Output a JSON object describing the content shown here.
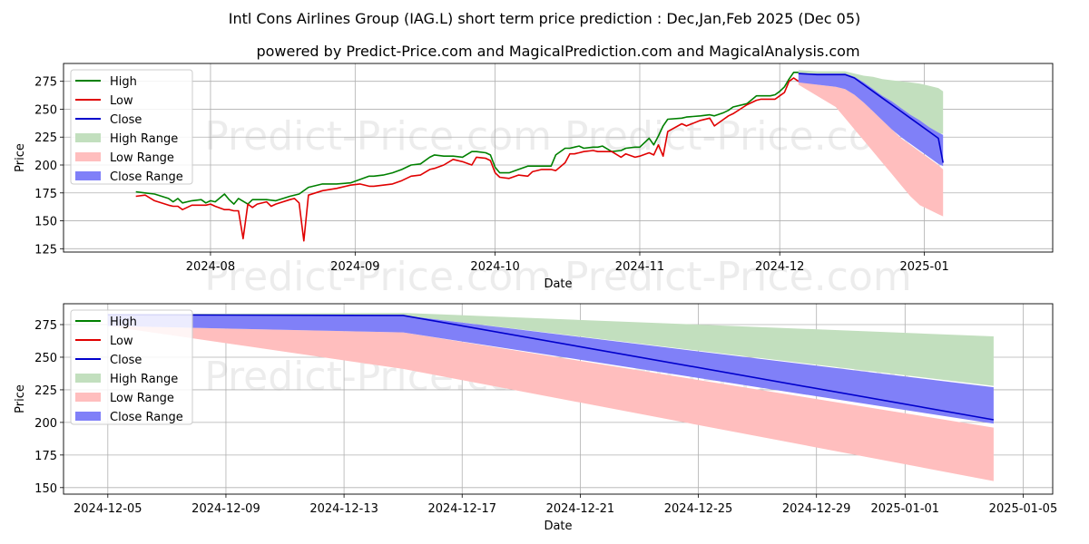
{
  "title": "Intl Cons Airlines Group (IAG.L) short term price prediction : Dec,Jan,Feb 2025 (Dec 05)",
  "subtitle": "powered by Predict-Price.com and MagicalPrediction.com and MagicalAnalysis.com",
  "watermark": "Predict-Price.com",
  "colors": {
    "high": "#008000",
    "low": "#e00000",
    "close": "#0000cc",
    "high_range": "#c2dfbe",
    "low_range": "#ffbebe",
    "close_range": "#8080f8"
  },
  "chart_data": [
    {
      "type": "line",
      "title": "Intl Cons Airlines Group (IAG.L) short term price prediction : Dec,Jan,Feb 2025 (Dec 05)",
      "xlabel": "Date",
      "ylabel": "Price",
      "xlim": [
        -15.5,
        196.5
      ],
      "ylim": [
        122,
        291
      ],
      "yticks": [
        125,
        150,
        175,
        200,
        225,
        250,
        275
      ],
      "xticks": [
        {
          "day": 16,
          "label": "2024-08"
        },
        {
          "day": 47,
          "label": "2024-09"
        },
        {
          "day": 77,
          "label": "2024-10"
        },
        {
          "day": 108,
          "label": "2024-11"
        },
        {
          "day": 138,
          "label": "2024-12"
        },
        {
          "day": 169,
          "label": "2025-01"
        }
      ],
      "legend": [
        "High",
        "Low",
        "Close",
        "High Range",
        "Low Range",
        "Close Range"
      ],
      "legend_position": "top-left",
      "series": [
        {
          "name": "High",
          "x": [
            0,
            2,
            4,
            7,
            8,
            9,
            10,
            12,
            14,
            15,
            16,
            17,
            19,
            20,
            21,
            22,
            24,
            25,
            26,
            28,
            30,
            33,
            35,
            37,
            40,
            43,
            46,
            48,
            50,
            51,
            53,
            55,
            57,
            59,
            61,
            63,
            64,
            66,
            68,
            70,
            72,
            73,
            75,
            76,
            77,
            78,
            80,
            82,
            84,
            85,
            87,
            89,
            90,
            92,
            93,
            94,
            95,
            96,
            98,
            99,
            100,
            102,
            104,
            105,
            107,
            108,
            110,
            111,
            112,
            113,
            114,
            117,
            118,
            121,
            123,
            124,
            126,
            127,
            128,
            131,
            133,
            134,
            136,
            137,
            138,
            139,
            140,
            141,
            142
          ],
          "values": [
            176,
            175,
            174,
            170,
            167,
            170,
            166,
            168,
            169,
            166,
            168,
            167,
            174,
            169,
            165,
            170,
            165,
            169,
            169,
            169,
            168,
            172,
            174,
            180,
            183,
            183,
            184,
            187,
            190,
            190,
            191,
            193,
            196,
            200,
            201,
            207,
            209,
            208,
            208,
            207,
            212,
            212,
            211,
            209,
            198,
            193,
            193,
            196,
            199,
            199,
            199,
            199,
            209,
            215,
            215,
            216,
            217,
            215,
            216,
            216,
            217,
            212,
            213,
            215,
            216,
            216,
            224,
            218,
            226,
            235,
            241,
            242,
            243,
            244,
            245,
            244,
            247,
            249,
            252,
            255,
            262,
            262,
            262,
            263,
            266,
            270,
            277,
            283,
            283
          ]
        },
        {
          "name": "Low",
          "x": [
            0,
            2,
            4,
            7,
            8,
            9,
            10,
            12,
            14,
            15,
            16,
            17,
            19,
            20,
            21,
            22,
            23,
            24,
            25,
            26,
            28,
            29,
            30,
            33,
            34,
            35,
            36,
            37,
            40,
            43,
            46,
            48,
            50,
            51,
            53,
            55,
            57,
            59,
            61,
            63,
            64,
            66,
            68,
            70,
            72,
            73,
            75,
            76,
            77,
            78,
            80,
            82,
            84,
            85,
            87,
            89,
            90,
            92,
            93,
            94,
            95,
            96,
            98,
            99,
            100,
            102,
            104,
            105,
            107,
            108,
            110,
            111,
            112,
            113,
            114,
            117,
            118,
            121,
            123,
            124,
            126,
            127,
            128,
            131,
            133,
            134,
            136,
            137,
            138,
            139,
            140,
            141,
            142
          ],
          "values": [
            172,
            173,
            168,
            164,
            163,
            163,
            160,
            164,
            164,
            164,
            165,
            163,
            160,
            160,
            159,
            159,
            134,
            165,
            162,
            165,
            167,
            163,
            165,
            169,
            170,
            166,
            132,
            173,
            177,
            179,
            182,
            183,
            181,
            181,
            182,
            183,
            186,
            190,
            191,
            196,
            197,
            200,
            205,
            203,
            200,
            207,
            206,
            204,
            193,
            189,
            188,
            191,
            190,
            194,
            196,
            196,
            195,
            202,
            210,
            210,
            211,
            212,
            213,
            212,
            212,
            212,
            207,
            210,
            207,
            208,
            211,
            209,
            218,
            208,
            230,
            237,
            235,
            240,
            242,
            235,
            241,
            244,
            246,
            254,
            258,
            259,
            259,
            259,
            262,
            265,
            275,
            278,
            275
          ]
        },
        {
          "name": "Close",
          "x": [
            142,
            146,
            150,
            152,
            154,
            156,
            158,
            160,
            162,
            164,
            166,
            168,
            170,
            172,
            173
          ],
          "values": [
            282,
            281,
            281,
            281,
            278,
            272,
            266,
            260,
            254,
            248,
            242,
            236,
            230,
            224,
            202
          ]
        },
        {
          "name": "High Range",
          "x": [
            142,
            146,
            150,
            152,
            154,
            156,
            158,
            160,
            162,
            164,
            166,
            168,
            170,
            172,
            173
          ],
          "upper": [
            285,
            284,
            284,
            284,
            282,
            280,
            279,
            277,
            276,
            275,
            274,
            273,
            271,
            269,
            266
          ],
          "lower": [
            282,
            281,
            281,
            281,
            278,
            272,
            266,
            260,
            254,
            248,
            242,
            236,
            230,
            228,
            228
          ]
        },
        {
          "name": "Low Range",
          "x": [
            142,
            146,
            150,
            152,
            154,
            156,
            158,
            160,
            162,
            164,
            166,
            168,
            170,
            172,
            173
          ],
          "upper": [
            275,
            272,
            270,
            268,
            263,
            256,
            248,
            240,
            232,
            224,
            218,
            212,
            206,
            200,
            196
          ],
          "lower": [
            272,
            262,
            252,
            242,
            232,
            222,
            212,
            202,
            192,
            182,
            172,
            164,
            160,
            156,
            154
          ]
        },
        {
          "name": "Close Range",
          "x": [
            142,
            146,
            150,
            152,
            154,
            156,
            158,
            160,
            162,
            164,
            166,
            168,
            170,
            172,
            173
          ],
          "upper": [
            282,
            282,
            282,
            282,
            279,
            274,
            268,
            262,
            257,
            251,
            245,
            240,
            234,
            229,
            227
          ],
          "lower": [
            274,
            272,
            270,
            268,
            263,
            256,
            248,
            240,
            232,
            225,
            219,
            213,
            207,
            201,
            199
          ]
        }
      ]
    },
    {
      "type": "line",
      "xlabel": "Date",
      "ylabel": "Price",
      "xlim": [
        -1.5,
        32
      ],
      "ylim": [
        145,
        291
      ],
      "yticks": [
        150,
        175,
        200,
        225,
        250,
        275
      ],
      "xticks": [
        {
          "day": 0,
          "label": "2024-12-05"
        },
        {
          "day": 4,
          "label": "2024-12-09"
        },
        {
          "day": 8,
          "label": "2024-12-13"
        },
        {
          "day": 12,
          "label": "2024-12-17"
        },
        {
          "day": 16,
          "label": "2024-12-21"
        },
        {
          "day": 20,
          "label": "2024-12-25"
        },
        {
          "day": 24,
          "label": "2024-12-29"
        },
        {
          "day": 27,
          "label": "2025-01-01"
        },
        {
          "day": 31,
          "label": "2025-01-05"
        }
      ],
      "legend": [
        "High",
        "Low",
        "Close",
        "High Range",
        "Low Range",
        "Close Range"
      ],
      "legend_position": "top-left",
      "series": [
        {
          "name": "Close",
          "x": [
            0,
            10,
            30
          ],
          "values": [
            282.5,
            282,
            202
          ]
        },
        {
          "name": "High Range",
          "x": [
            0,
            10,
            30
          ],
          "upper": [
            283,
            284,
            266
          ],
          "lower": [
            282.5,
            282,
            228
          ]
        },
        {
          "name": "Low Range",
          "x": [
            0,
            10,
            30
          ],
          "upper": [
            274,
            269,
            196
          ],
          "lower": [
            274,
            241,
            155
          ]
        },
        {
          "name": "Close Range",
          "x": [
            0,
            10,
            30
          ],
          "upper": [
            283,
            282,
            227
          ],
          "lower": [
            274,
            269,
            199
          ]
        }
      ]
    }
  ]
}
